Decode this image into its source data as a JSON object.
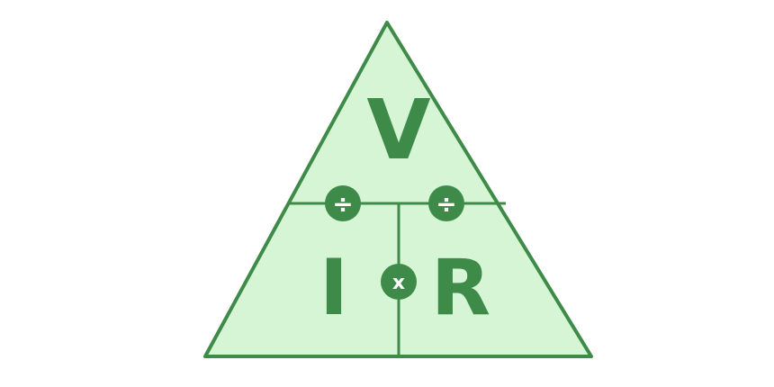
{
  "colors": {
    "fill": "#d5f5d5",
    "stroke": "#3e8a48",
    "letter": "#3e8a48",
    "operator_text": "#ffffff"
  },
  "diagram": {
    "top_label": "V",
    "bottom_left_label": "I",
    "bottom_right_label": "R",
    "operators": {
      "left_divide": "÷",
      "right_divide": "÷",
      "multiply": "x"
    }
  }
}
